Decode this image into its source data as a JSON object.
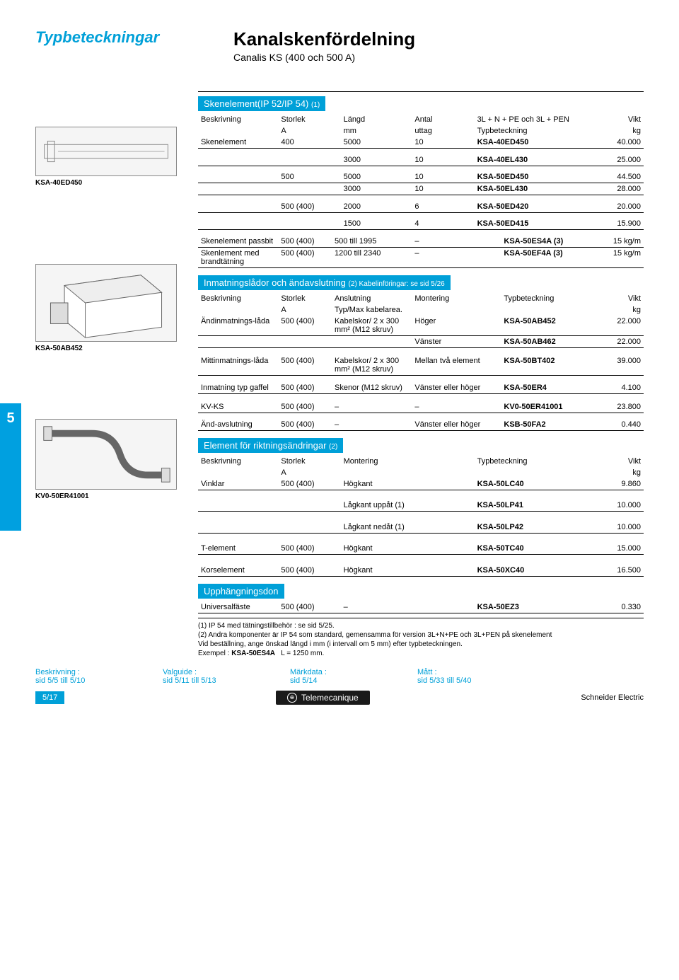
{
  "header": {
    "left": "Typbeteckningar",
    "title": "Kanalskenfördelning",
    "subtitle": "Canalis KS (400 och 500 A)"
  },
  "side_tab": "5",
  "colors": {
    "accent": "#00a0d8"
  },
  "section1": {
    "heading": "Skenelement(IP 52/IP 54)",
    "heading_note": "(1)",
    "cols": [
      "Beskrivning",
      "Storlek",
      "Längd",
      "Antal",
      "3L + N + PE och 3L + PEN",
      "Vikt"
    ],
    "subcols": [
      "",
      "A",
      "mm",
      "uttag",
      "Typbeteckning",
      "kg"
    ],
    "img_label": "KSA-40ED450",
    "rows": [
      [
        "Skenelement",
        "400",
        "5000",
        "10",
        "KSA-40ED450",
        "40.000"
      ],
      [
        "",
        "",
        "3000",
        "10",
        "KSA-40EL430",
        "25.000"
      ],
      [
        "",
        "500",
        "5000",
        "10",
        "KSA-50ED450",
        "44.500"
      ],
      [
        "",
        "",
        "3000",
        "10",
        "KSA-50EL430",
        "28.000"
      ],
      [
        "",
        "500 (400)",
        "2000",
        "6",
        "KSA-50ED420",
        "20.000"
      ],
      [
        "",
        "",
        "1500",
        "4",
        "KSA-50ED415",
        "15.900"
      ]
    ],
    "extra_rows": [
      [
        "Skenelement passbit",
        "500 (400)",
        "500 till 1995",
        "–",
        "KSA-50ES4A (3)",
        "15 kg/m"
      ],
      [
        "Skenlement med brandtätning",
        "500 (400)",
        "1200 till 2340",
        "–",
        "KSA-50EF4A (3)",
        "15 kg/m"
      ]
    ]
  },
  "section2": {
    "heading": "Inmatningslådor och ändavslutning",
    "heading_note": "(2) Kabelinföringar: se sid 5/26",
    "cols": [
      "Beskrivning",
      "Storlek",
      "Anslutning",
      "Montering",
      "Typbeteckning",
      "Vikt"
    ],
    "subcols": [
      "",
      "A",
      "Typ/Max kabelarea.",
      "",
      "",
      "kg"
    ],
    "img_label": "KSA-50AB452",
    "rows": [
      [
        "Ändinmatnings-låda",
        "500 (400)",
        "Kabelskor/ 2 x 300 mm² (M12 skruv)",
        "Höger",
        "KSA-50AB452",
        "22.000"
      ],
      [
        "",
        "",
        "",
        "Vänster",
        "KSA-50AB462",
        "22.000"
      ],
      [
        "Mittinmatnings-låda",
        "500 (400)",
        "Kabelskor/ 2 x 300 mm² (M12 skruv)",
        "Mellan två element",
        "KSA-50BT402",
        "39.000"
      ],
      [
        "Inmatning typ gaffel",
        "500 (400)",
        "Skenor (M12 skruv)",
        "Vänster eller höger",
        "KSA-50ER4",
        "4.100"
      ],
      [
        "KV-KS",
        "500 (400)",
        "–",
        "–",
        "KV0-50ER41001",
        "23.800"
      ]
    ],
    "extra_rows": [
      [
        "Änd-avslutning",
        "500 (400)",
        "–",
        "Vänster eller höger",
        "KSB-50FA2",
        "0.440"
      ]
    ]
  },
  "section3": {
    "heading": "Element för riktningsändringar",
    "heading_note": "(2)",
    "cols": [
      "Beskrivning",
      "Storlek",
      "Montering",
      "Typbeteckning",
      "Vikt"
    ],
    "subcols": [
      "",
      "A",
      "",
      "",
      "kg"
    ],
    "img_label": "KV0-50ER41001",
    "rows": [
      [
        "Vinklar",
        "500 (400)",
        "Högkant",
        "KSA-50LC40",
        "9.860"
      ],
      [
        "",
        "",
        "Lågkant uppåt (1)",
        "KSA-50LP41",
        "10.000"
      ],
      [
        "",
        "",
        "Lågkant nedåt (1)",
        "KSA-50LP42",
        "10.000"
      ],
      [
        "T-element",
        "500 (400)",
        "Högkant",
        "KSA-50TC40",
        "15.000"
      ],
      [
        "Korselement",
        "500 (400)",
        "Högkant",
        "KSA-50XC40",
        "16.500"
      ]
    ]
  },
  "section4": {
    "heading": "Upphängningsdon",
    "rows": [
      [
        "Universalfäste",
        "500 (400)",
        "–",
        "KSA-50EZ3",
        "0.330"
      ]
    ]
  },
  "footnotes": [
    "(1) IP 54 med tätningstillbehör : se sid 5/25.",
    "(2) Andra komponenter är IP 54 som standard, gemensamma för version 3L+N+PE och 3L+PEN på skenelement",
    "Vid beställning, ange önskad längd i mm (i intervall om 5 mm) efter typbeteckningen.",
    "Exempel : KSA-50ES4A   L = 1250 mm."
  ],
  "bottom_links": [
    {
      "title": "Beskrivning :",
      "ref": "sid 5/5 till 5/10"
    },
    {
      "title": "Valguide :",
      "ref": "sid 5/11 till 5/13"
    },
    {
      "title": "Märkdata :",
      "ref": "sid 5/14"
    },
    {
      "title": "Mått :",
      "ref": "sid 5/33 till 5/40"
    }
  ],
  "footer": {
    "page": "5/17",
    "brand": "Telemecanique",
    "company": "Schneider Electric"
  }
}
